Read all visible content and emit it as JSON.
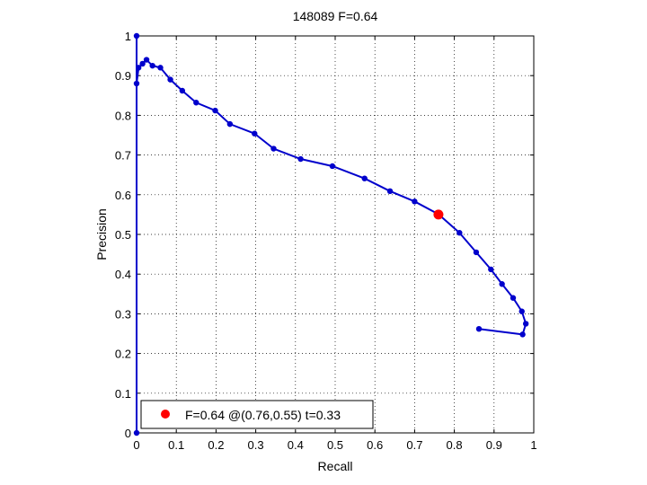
{
  "chart_data": {
    "type": "line",
    "title": "148089 F=0.64",
    "xlabel": "Recall",
    "ylabel": "Precision",
    "xlim": [
      0,
      1
    ],
    "ylim": [
      0,
      1
    ],
    "grid": true,
    "xticks": [
      "0",
      "0.1",
      "0.2",
      "0.3",
      "0.4",
      "0.5",
      "0.6",
      "0.7",
      "0.8",
      "0.9",
      "1"
    ],
    "yticks": [
      "0",
      "0.1",
      "0.2",
      "0.3",
      "0.4",
      "0.5",
      "0.6",
      "0.7",
      "0.8",
      "0.9",
      "1"
    ],
    "series": [
      {
        "color": "#0000cc",
        "points": [
          [
            0.0,
            0.0
          ],
          [
            0.0,
            1.0
          ],
          [
            0.0,
            0.88
          ],
          [
            0.005,
            0.92
          ],
          [
            0.015,
            0.93
          ],
          [
            0.025,
            0.94
          ],
          [
            0.04,
            0.925
          ],
          [
            0.06,
            0.92
          ],
          [
            0.085,
            0.89
          ],
          [
            0.115,
            0.862
          ],
          [
            0.15,
            0.832
          ],
          [
            0.198,
            0.812
          ],
          [
            0.235,
            0.778
          ],
          [
            0.297,
            0.754
          ],
          [
            0.345,
            0.716
          ],
          [
            0.413,
            0.69
          ],
          [
            0.493,
            0.672
          ],
          [
            0.574,
            0.641
          ],
          [
            0.638,
            0.609
          ],
          [
            0.7,
            0.583
          ],
          [
            0.76,
            0.551
          ],
          [
            0.813,
            0.504
          ],
          [
            0.855,
            0.455
          ],
          [
            0.892,
            0.412
          ],
          [
            0.92,
            0.375
          ],
          [
            0.948,
            0.34
          ],
          [
            0.97,
            0.306
          ],
          [
            0.98,
            0.275
          ],
          [
            0.972,
            0.248
          ],
          [
            0.862,
            0.262
          ]
        ]
      }
    ],
    "highlight": {
      "x": 0.76,
      "y": 0.55,
      "color": "#ff0000"
    },
    "legend": {
      "position": "bottom-left",
      "entries": [
        "F=0.64 @(0.76,0.55) t=0.33"
      ]
    }
  }
}
